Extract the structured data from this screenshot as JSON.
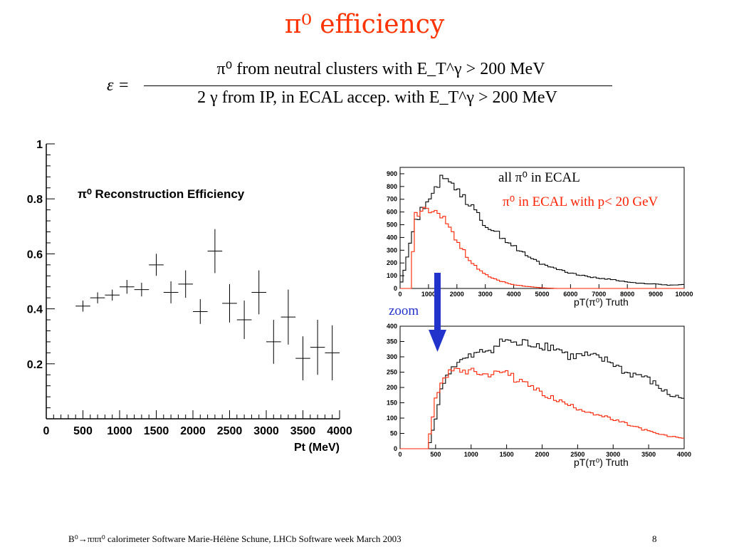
{
  "title": "π⁰ efficiency",
  "formula": {
    "lhs": "ε =",
    "numerator": "π⁰  from neutral clusters with E_T^γ > 200 MeV",
    "denominator": "2 γ  from IP, in ECAL accep. with E_T^γ > 200 MeV"
  },
  "annotations": {
    "all_label": "all π⁰ in ECAL",
    "cut_label": "π⁰ in ECAL with p< 20 GeV",
    "zoom_label": "zoom",
    "all_color": "#000000",
    "cut_color": "#ff2200",
    "zoom_color": "#2233cc",
    "arrow_color": "#2233cc"
  },
  "footer": "B⁰→πππ⁰ calorimeter Software Marie-Hélène Schune, LHCb Software week March 2003",
  "page_number": "8",
  "chart_data": [
    {
      "type": "scatter",
      "title": "π⁰  Reconstruction Efficiency",
      "xlabel": "Pt (MeV)",
      "ylabel": "",
      "xlim": [
        0,
        4000
      ],
      "ylim": [
        0,
        1
      ],
      "xticks": [
        0,
        500,
        1000,
        1500,
        2000,
        2500,
        3000,
        3500,
        4000
      ],
      "yticks": [
        0.2,
        0.4,
        0.6,
        0.8,
        1
      ],
      "points": [
        {
          "x": 500,
          "y": 0.41,
          "xerr": 100,
          "yerr": 0.02
        },
        {
          "x": 700,
          "y": 0.44,
          "xerr": 100,
          "yerr": 0.02
        },
        {
          "x": 900,
          "y": 0.45,
          "xerr": 100,
          "yerr": 0.02
        },
        {
          "x": 1100,
          "y": 0.48,
          "xerr": 100,
          "yerr": 0.025
        },
        {
          "x": 1300,
          "y": 0.47,
          "xerr": 100,
          "yerr": 0.025
        },
        {
          "x": 1500,
          "y": 0.56,
          "xerr": 100,
          "yerr": 0.04
        },
        {
          "x": 1700,
          "y": 0.46,
          "xerr": 100,
          "yerr": 0.04
        },
        {
          "x": 1900,
          "y": 0.49,
          "xerr": 100,
          "yerr": 0.05
        },
        {
          "x": 2100,
          "y": 0.39,
          "xerr": 100,
          "yerr": 0.045
        },
        {
          "x": 2300,
          "y": 0.61,
          "xerr": 100,
          "yerr": 0.08
        },
        {
          "x": 2500,
          "y": 0.42,
          "xerr": 100,
          "yerr": 0.07
        },
        {
          "x": 2700,
          "y": 0.36,
          "xerr": 100,
          "yerr": 0.07
        },
        {
          "x": 2900,
          "y": 0.46,
          "xerr": 100,
          "yerr": 0.08
        },
        {
          "x": 3100,
          "y": 0.28,
          "xerr": 100,
          "yerr": 0.08
        },
        {
          "x": 3300,
          "y": 0.37,
          "xerr": 100,
          "yerr": 0.1
        },
        {
          "x": 3500,
          "y": 0.22,
          "xerr": 100,
          "yerr": 0.08
        },
        {
          "x": 3700,
          "y": 0.26,
          "xerr": 100,
          "yerr": 0.1
        },
        {
          "x": 3900,
          "y": 0.24,
          "xerr": 100,
          "yerr": 0.1
        }
      ]
    },
    {
      "type": "line",
      "title": "",
      "xlabel": "pT(π⁰) Truth",
      "ylabel": "",
      "xlim": [
        0,
        10000
      ],
      "ylim": [
        0,
        950
      ],
      "xticks": [
        0,
        1000,
        2000,
        3000,
        4000,
        5000,
        6000,
        7000,
        8000,
        9000,
        10000
      ],
      "yticks": [
        0,
        100,
        200,
        300,
        400,
        500,
        600,
        700,
        800,
        900
      ],
      "bin_width": 100,
      "series": [
        {
          "name": "all π⁰ in ECAL",
          "color": "#000000",
          "x": [
            0,
            500,
            1000,
            1500,
            2000,
            2500,
            3000,
            3500,
            4000,
            4500,
            5000,
            5500,
            6000,
            6500,
            7000,
            7500,
            8000,
            8500,
            9000,
            9500,
            10000
          ],
          "y": [
            0,
            500,
            720,
            860,
            800,
            640,
            500,
            420,
            330,
            250,
            190,
            160,
            120,
            100,
            80,
            70,
            50,
            40,
            35,
            25,
            30
          ]
        },
        {
          "name": "π⁰ in ECAL with p< 20 GeV",
          "color": "#ff2200",
          "x": [
            0,
            400,
            500,
            800,
            1000,
            1500,
            2000,
            2500,
            3000,
            3500,
            4000,
            4500,
            5000,
            5500
          ],
          "y": [
            0,
            0,
            560,
            630,
            600,
            570,
            380,
            200,
            110,
            60,
            30,
            15,
            5,
            0
          ]
        }
      ]
    },
    {
      "type": "line",
      "title": "",
      "xlabel": "pT(π⁰) Truth",
      "ylabel": "",
      "xlim": [
        0,
        4000
      ],
      "ylim": [
        0,
        400
      ],
      "xticks": [
        0,
        500,
        1000,
        1500,
        2000,
        2500,
        3000,
        3500,
        4000
      ],
      "yticks": [
        0,
        50,
        100,
        150,
        200,
        250,
        300,
        350,
        400
      ],
      "bin_width": 40,
      "series": [
        {
          "name": "all π⁰ in ECAL",
          "color": "#000000",
          "x": [
            400,
            500,
            600,
            700,
            800,
            1000,
            1200,
            1400,
            1500,
            1600,
            1800,
            2000,
            2200,
            2400,
            2600,
            2800,
            3000,
            3200,
            3400,
            3600,
            3800,
            4000
          ],
          "y": [
            0,
            100,
            210,
            255,
            280,
            300,
            320,
            340,
            360,
            340,
            345,
            340,
            330,
            300,
            305,
            295,
            280,
            245,
            240,
            210,
            175,
            165
          ]
        },
        {
          "name": "π⁰ in ECAL with p< 20 GeV",
          "color": "#ff2200",
          "x": [
            380,
            400,
            500,
            600,
            700,
            800,
            1000,
            1200,
            1400,
            1500,
            1600,
            1800,
            2000,
            2200,
            2400,
            2600,
            2800,
            3000,
            3200,
            3400,
            3600,
            3800,
            4000
          ],
          "y": [
            0,
            20,
            160,
            235,
            250,
            260,
            255,
            245,
            250,
            255,
            230,
            210,
            180,
            160,
            140,
            125,
            110,
            95,
            80,
            65,
            50,
            40,
            35
          ]
        }
      ]
    }
  ]
}
